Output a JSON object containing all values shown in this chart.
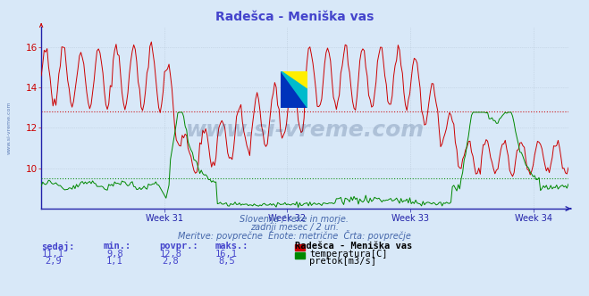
{
  "title": "Radešca - Meniška vas",
  "title_color": "#4444cc",
  "bg_color": "#d8e8f8",
  "grid_color": "#b8c8d8",
  "axis_color": "#2222aa",
  "week_labels": [
    "Week 31",
    "Week 32",
    "Week 33",
    "Week 34"
  ],
  "temp_color": "#cc0000",
  "flow_color": "#008800",
  "temp_avg": 12.8,
  "flow_avg_scaled": 2.8,
  "watermark": "www.si-vreme.com",
  "watermark_color": "#1a3a6a",
  "subtitle1": "Slovenija / reke in morje.",
  "subtitle2": "zadnji mesec / 2 uri.",
  "subtitle3": "Meritve: povprečne  Enote: metrične  Črta: povprečje",
  "subtitle_color": "#4466aa",
  "table_headers": [
    "sedaj:",
    "min.:",
    "povpr.:",
    "maks.:"
  ],
  "table_row1": [
    "11,1",
    "9,8",
    "12,8",
    "16,1"
  ],
  "table_row2": [
    "2,9",
    "1,1",
    "2,8",
    "8,5"
  ],
  "table_color": "#4444cc",
  "legend_title": "Radešca - Meniška vas",
  "n_points": 360,
  "ylim": [
    8,
    17
  ],
  "yticks": [
    10,
    12,
    14,
    16
  ],
  "sidebar_text": "www.si-vreme.com",
  "sidebar_color": "#4466aa",
  "flow_scale": 1.8
}
